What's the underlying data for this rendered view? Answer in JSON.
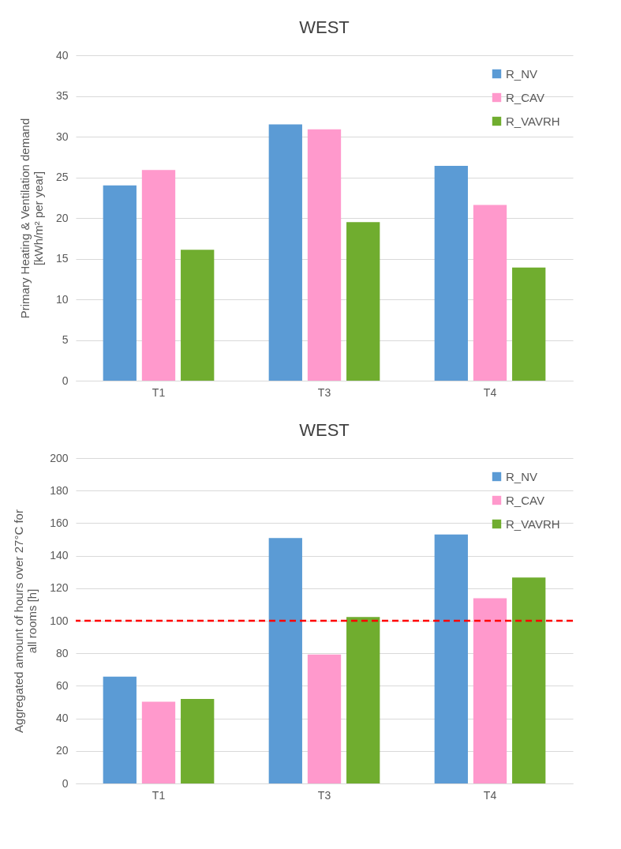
{
  "chart_data": [
    {
      "type": "bar",
      "title": "WEST",
      "ylabel": "Primary  Heating & Ventilation demand\n[kWh/m² per year]",
      "categories": [
        "T1",
        "T3",
        "T4"
      ],
      "series": [
        {
          "name": "R_NV",
          "color": "#5b9bd5",
          "values": [
            24,
            31.5,
            26.4
          ]
        },
        {
          "name": "R_CAV",
          "color": "#ff99cc",
          "values": [
            25.9,
            30.9,
            21.6
          ]
        },
        {
          "name": "R_VAVRH",
          "color": "#70ad2f",
          "values": [
            16.1,
            19.5,
            13.9
          ]
        }
      ],
      "ylim": [
        0,
        40
      ],
      "yticks": [
        0,
        5,
        10,
        15,
        20,
        25,
        30,
        35,
        40
      ],
      "grid": "y",
      "legend": "top right"
    },
    {
      "type": "bar",
      "title": "WEST",
      "ylabel": "Aggregated amount of hours over 27°C for\nall rooms [h]",
      "categories": [
        "T1",
        "T3",
        "T4"
      ],
      "series": [
        {
          "name": "R_NV",
          "color": "#5b9bd5",
          "values": [
            65.7,
            150.9,
            153
          ]
        },
        {
          "name": "R_CAV",
          "color": "#ff99cc",
          "values": [
            50.3,
            79.2,
            113.8
          ]
        },
        {
          "name": "R_VAVRH",
          "color": "#70ad2f",
          "values": [
            52,
            102.3,
            126.6
          ]
        }
      ],
      "ylim": [
        0,
        200
      ],
      "yticks": [
        0,
        20,
        40,
        60,
        80,
        100,
        120,
        140,
        160,
        180,
        200
      ],
      "grid": "y",
      "legend": "top right",
      "ref_lines": [
        {
          "axis": "y",
          "value": 100,
          "color": "#ff0000",
          "line_style": "dashed"
        }
      ]
    }
  ]
}
